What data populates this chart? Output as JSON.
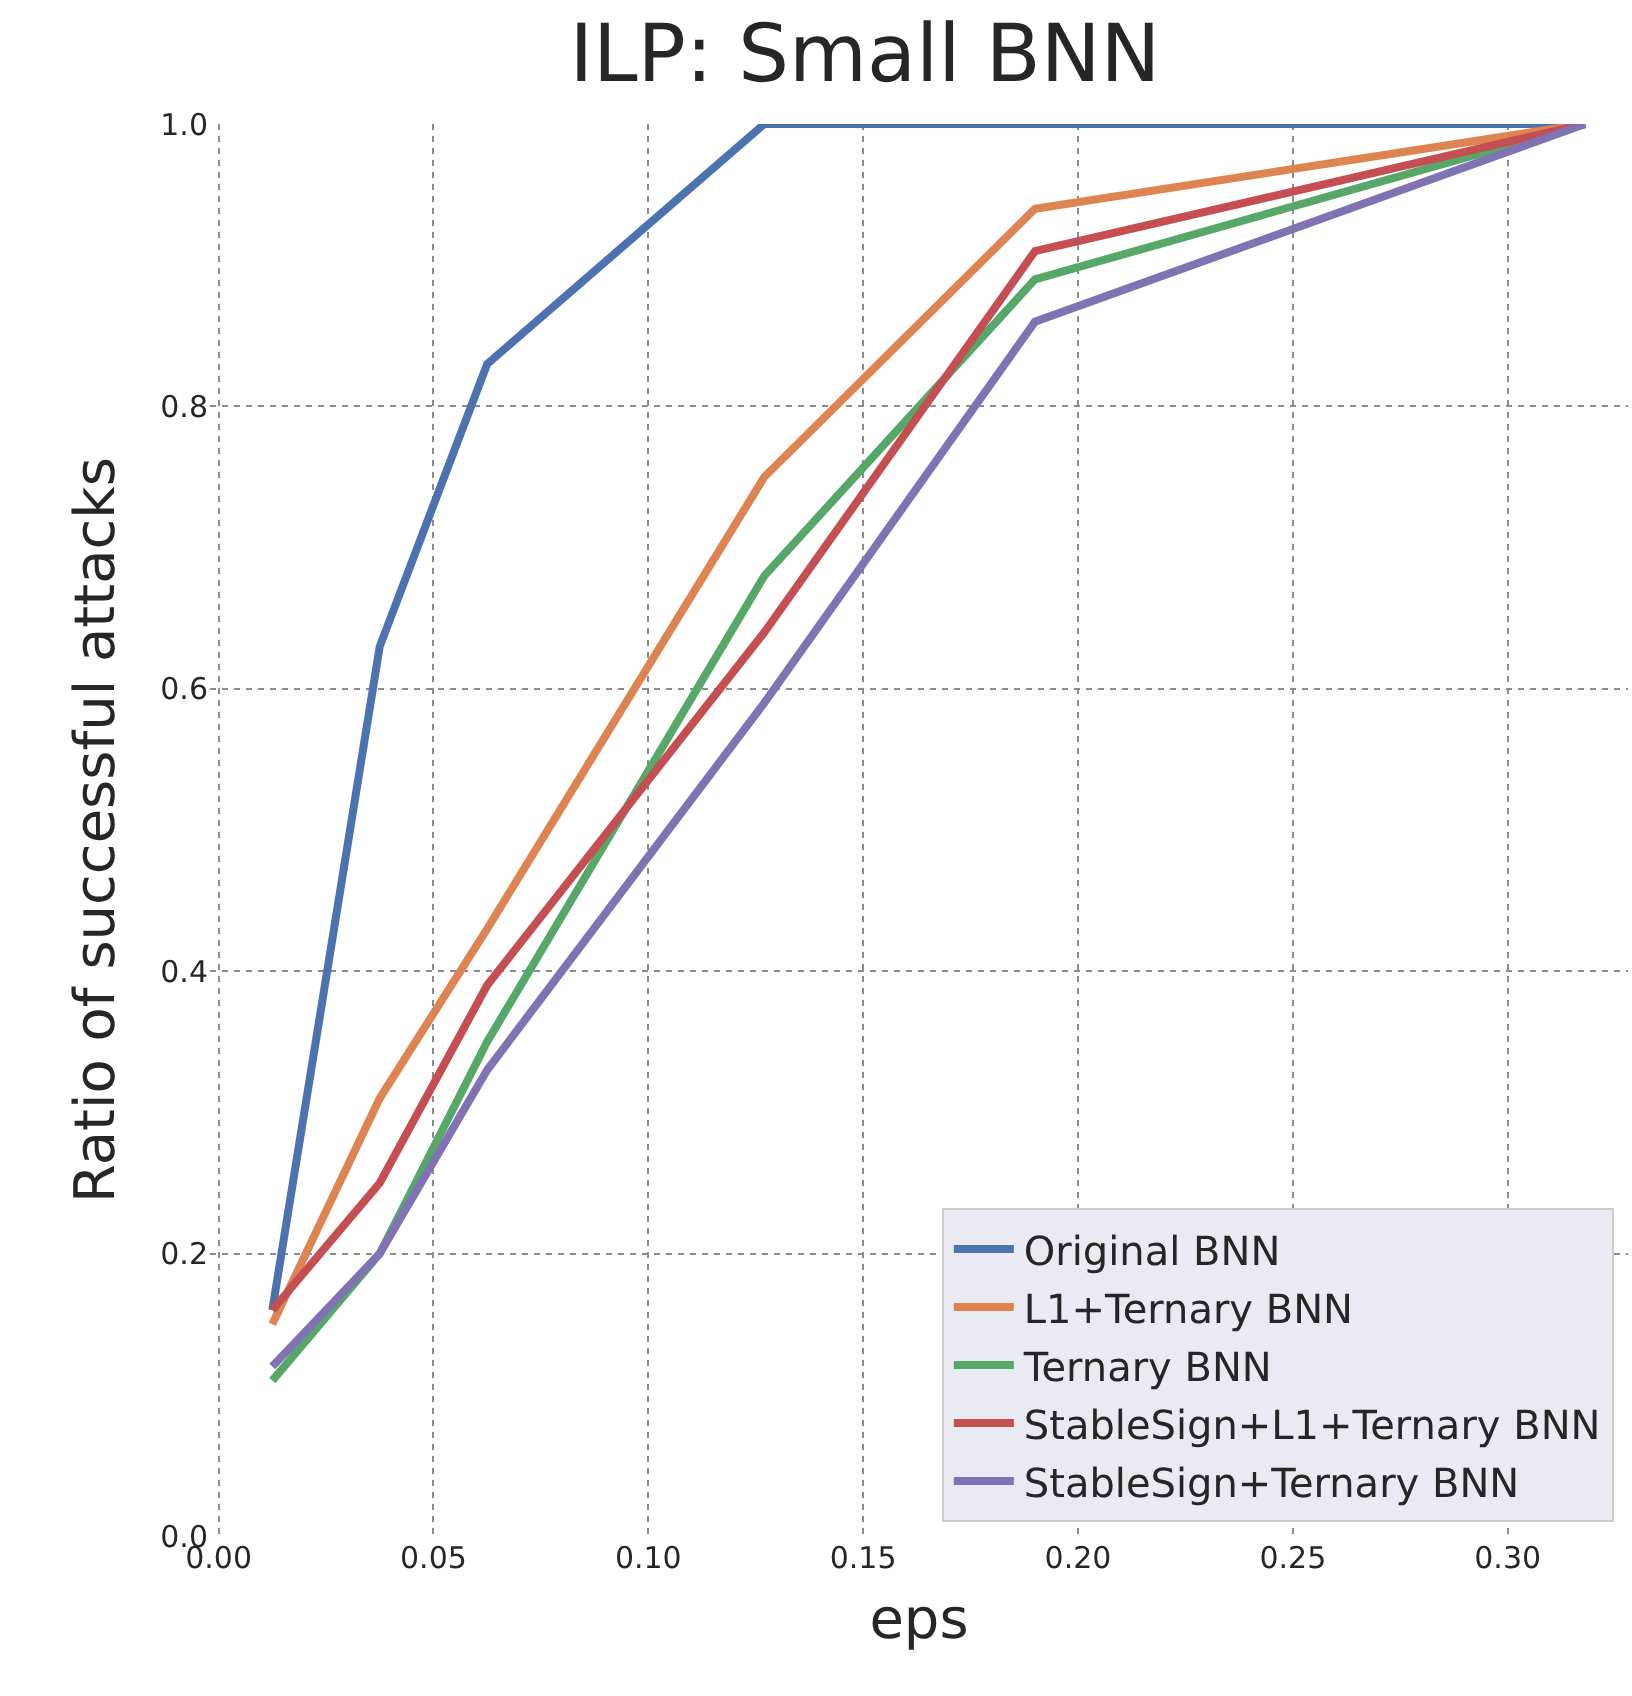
{
  "chart_data": {
    "type": "line",
    "title": "ILP: Small BNN",
    "xlabel": "eps",
    "ylabel": "Ratio of successful attacks",
    "x": [
      0.0125,
      0.0375,
      0.0625,
      0.127,
      0.19,
      0.318
    ],
    "series": [
      {
        "name": "Original BNN",
        "color": "#4c72b0",
        "values": [
          0.16,
          0.63,
          0.83,
          1.0,
          1.0,
          1.0
        ]
      },
      {
        "name": "L1+Ternary BNN",
        "color": "#dd8452",
        "values": [
          0.15,
          0.31,
          0.43,
          0.75,
          0.94,
          1.0
        ]
      },
      {
        "name": "Ternary BNN",
        "color": "#55a868",
        "values": [
          0.11,
          0.2,
          0.35,
          0.68,
          0.89,
          1.0
        ]
      },
      {
        "name": "StableSign+L1+Ternary BNN",
        "color": "#c44e52",
        "values": [
          0.16,
          0.25,
          0.39,
          0.64,
          0.91,
          1.0
        ]
      },
      {
        "name": "StableSign+Ternary BNN",
        "color": "#8172b3",
        "values": [
          0.12,
          0.2,
          0.33,
          0.59,
          0.86,
          1.0
        ]
      }
    ],
    "xlim": [
      -0.002,
      0.328
    ],
    "xticks": [
      {
        "value": 0,
        "label": "0.00"
      },
      {
        "value": 0.05,
        "label": "0.05"
      },
      {
        "value": 0.1,
        "label": "0.10"
      },
      {
        "value": 0.15,
        "label": "0.15"
      },
      {
        "value": 0.2,
        "label": "0.20"
      },
      {
        "value": 0.25,
        "label": "0.25"
      },
      {
        "value": 0.3,
        "label": "0.30"
      }
    ],
    "ylim": [
      0,
      1.0
    ],
    "yticks": [
      {
        "value": 0,
        "label": "0.0"
      },
      {
        "value": 0.2,
        "label": "0.2"
      },
      {
        "value": 0.4,
        "label": "0.4"
      },
      {
        "value": 0.6,
        "label": "0.6"
      },
      {
        "value": 0.8,
        "label": "0.8"
      },
      {
        "value": 1,
        "label": "1.0"
      }
    ],
    "grid": true,
    "legend": "bottom right",
    "line_style": "solid",
    "marker": "none"
  }
}
